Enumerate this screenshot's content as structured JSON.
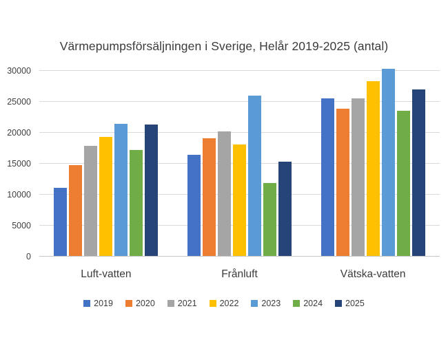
{
  "chart_data": {
    "type": "bar",
    "title": "Värmepumpsförsäljningen i Sverige, Helår 2019-2025 (antal)",
    "categories": [
      "Luft-vatten",
      "Frånluft",
      "Vätska-vatten"
    ],
    "series": [
      {
        "name": "2019",
        "color": "#4472C4",
        "values": [
          11000,
          16300,
          25400
        ]
      },
      {
        "name": "2020",
        "color": "#ED7D31",
        "values": [
          14700,
          19000,
          23800
        ]
      },
      {
        "name": "2021",
        "color": "#A5A5A5",
        "values": [
          17800,
          20100,
          25500
        ]
      },
      {
        "name": "2022",
        "color": "#FFC000",
        "values": [
          19200,
          18000,
          28200
        ]
      },
      {
        "name": "2023",
        "color": "#5B9BD5",
        "values": [
          21300,
          25900,
          30200
        ]
      },
      {
        "name": "2024",
        "color": "#70AD47",
        "values": [
          17100,
          11800,
          23500
        ]
      },
      {
        "name": "2025",
        "color": "#264478",
        "values": [
          21200,
          15200,
          26900
        ]
      }
    ],
    "xlabel": "",
    "ylabel": "",
    "ylim": [
      0,
      30000
    ],
    "ytick_step": 5000,
    "ytick_labels": [
      "0",
      "5000",
      "10000",
      "15000",
      "20000",
      "25000",
      "30000"
    ],
    "grid": true,
    "legend_position": "bottom"
  },
  "styles": {
    "grid_color": "#d9d9d9",
    "axis_line_color": "#c6c6c6",
    "text_color": "#3b3b3b",
    "background": "#ffffff"
  }
}
